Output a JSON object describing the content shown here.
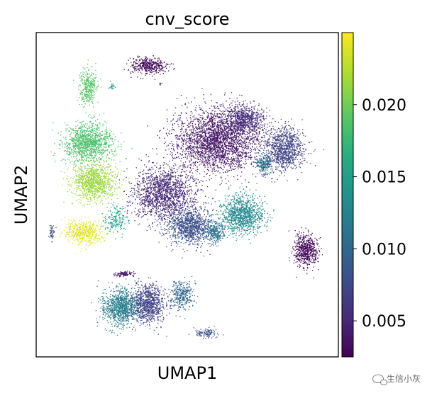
{
  "chart_data": {
    "type": "scatter",
    "title": "cnv_score",
    "xlabel": "UMAP1",
    "ylabel": "UMAP2",
    "colorbar": {
      "colormap": "viridis",
      "range": [
        0.0025,
        0.025
      ],
      "ticks": [
        0.005,
        0.01,
        0.015,
        0.02
      ],
      "tick_labels": [
        "0.005",
        "0.010",
        "0.015",
        "0.020"
      ]
    },
    "grid": false,
    "axis_ticks": false,
    "clusters": [
      {
        "x": 3.5,
        "y": 9.3,
        "sx": 0.55,
        "sy": 0.25,
        "value": 0.003,
        "n": 400
      },
      {
        "x": 3.9,
        "y": 8.7,
        "sx": 0.05,
        "sy": 0.05,
        "value": 0.003,
        "n": 6
      },
      {
        "x": 1.5,
        "y": 8.6,
        "sx": 0.25,
        "sy": 0.55,
        "value": 0.019,
        "n": 350
      },
      {
        "x": 2.3,
        "y": 8.6,
        "sx": 0.08,
        "sy": 0.12,
        "value": 0.015,
        "n": 25
      },
      {
        "x": 1.5,
        "y": 6.7,
        "sx": 0.75,
        "sy": 0.55,
        "value": 0.0185,
        "n": 1200
      },
      {
        "x": 1.7,
        "y": 5.4,
        "sx": 0.65,
        "sy": 0.55,
        "value": 0.0215,
        "n": 1000
      },
      {
        "x": 1.35,
        "y": 3.7,
        "sx": 0.55,
        "sy": 0.35,
        "value": 0.024,
        "n": 500
      },
      {
        "x": 2.4,
        "y": 4.1,
        "sx": 0.35,
        "sy": 0.4,
        "value": 0.015,
        "n": 200
      },
      {
        "x": 0.3,
        "y": 3.7,
        "sx": 0.08,
        "sy": 0.3,
        "value": 0.008,
        "n": 50
      },
      {
        "x": 5.8,
        "y": 6.8,
        "sx": 1.3,
        "sy": 0.95,
        "value": 0.004,
        "n": 2800
      },
      {
        "x": 4.0,
        "y": 5.0,
        "sx": 0.9,
        "sy": 0.8,
        "value": 0.005,
        "n": 1600
      },
      {
        "x": 6.7,
        "y": 7.5,
        "sx": 0.6,
        "sy": 0.4,
        "value": 0.0055,
        "n": 600
      },
      {
        "x": 7.3,
        "y": 6.0,
        "sx": 0.25,
        "sy": 0.3,
        "value": 0.011,
        "n": 200
      },
      {
        "x": 8.0,
        "y": 6.5,
        "sx": 0.6,
        "sy": 0.65,
        "value": 0.007,
        "n": 1000
      },
      {
        "x": 4.9,
        "y": 3.9,
        "sx": 0.7,
        "sy": 0.55,
        "value": 0.008,
        "n": 1100
      },
      {
        "x": 6.6,
        "y": 4.3,
        "sx": 0.65,
        "sy": 0.55,
        "value": 0.013,
        "n": 1100
      },
      {
        "x": 5.7,
        "y": 3.7,
        "sx": 0.3,
        "sy": 0.3,
        "value": 0.011,
        "n": 250
      },
      {
        "x": 8.7,
        "y": 3.1,
        "sx": 0.35,
        "sy": 0.5,
        "value": 0.003,
        "n": 600
      },
      {
        "x": 2.6,
        "y": 1.2,
        "sx": 0.55,
        "sy": 0.55,
        "value": 0.012,
        "n": 1000
      },
      {
        "x": 3.5,
        "y": 1.3,
        "sx": 0.5,
        "sy": 0.6,
        "value": 0.007,
        "n": 900
      },
      {
        "x": 2.7,
        "y": 2.3,
        "sx": 0.3,
        "sy": 0.08,
        "value": 0.004,
        "n": 100
      },
      {
        "x": 4.6,
        "y": 1.6,
        "sx": 0.35,
        "sy": 0.45,
        "value": 0.01,
        "n": 350
      },
      {
        "x": 5.4,
        "y": 0.3,
        "sx": 0.35,
        "sy": 0.15,
        "value": 0.008,
        "n": 120
      }
    ]
  },
  "watermark": {
    "text": "生信小灰"
  }
}
